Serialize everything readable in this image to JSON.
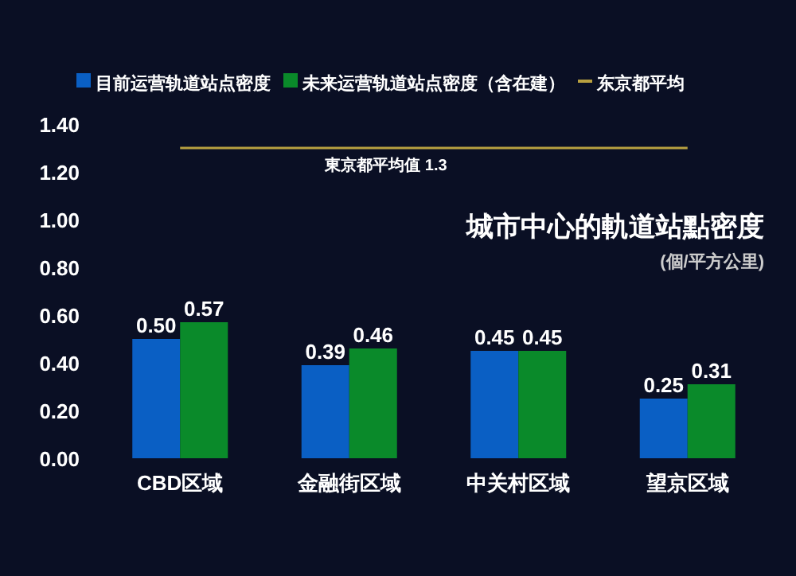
{
  "chart_data": {
    "type": "bar",
    "title": "城市中心的軌道站點密度",
    "subtitle": "(個/平方公里)",
    "categories": [
      "CBD区域",
      "金融街区域",
      "中关村区域",
      "望京区域"
    ],
    "series": [
      {
        "name": "目前运营轨道站点密度",
        "color": "#0a5fc4",
        "values": [
          0.5,
          0.39,
          0.45,
          0.25
        ],
        "value_labels": [
          "0.50",
          "0.39",
          "0.45",
          "0.25"
        ]
      },
      {
        "name": "未来运营轨道站点密度（含在建）",
        "color": "#0a8a2a",
        "values": [
          0.57,
          0.46,
          0.45,
          0.31
        ],
        "value_labels": [
          "0.57",
          "0.46",
          "0.45",
          "0.31"
        ]
      },
      {
        "name": "东京都平均",
        "type": "line",
        "color": "#b8a040",
        "values": [
          1.3,
          1.3,
          1.3,
          1.3
        ]
      }
    ],
    "annotations": [
      {
        "text": "東京都平均值 1.3",
        "y": 1.3
      }
    ],
    "ylim": [
      0,
      1.4
    ],
    "yticks": [
      {
        "value": 0,
        "label": "0.00"
      },
      {
        "value": 0.2,
        "label": "0.20"
      },
      {
        "value": 0.4,
        "label": "0.40"
      },
      {
        "value": 0.6,
        "label": "0.60"
      },
      {
        "value": 0.8,
        "label": "0.80"
      },
      {
        "value": 1.0,
        "label": "1.00"
      },
      {
        "value": 1.2,
        "label": "1.20"
      },
      {
        "value": 1.4,
        "label": "1.40"
      }
    ],
    "legend": "top",
    "grid": false
  }
}
